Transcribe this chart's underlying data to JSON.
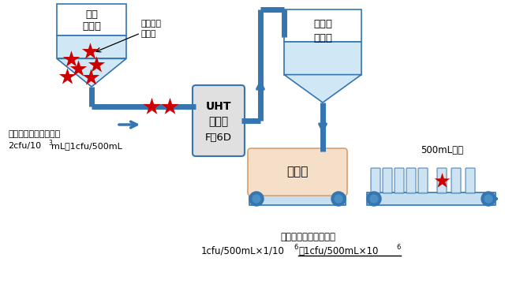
{
  "bg_color": "#ffffff",
  "blue_light": "#c5dff0",
  "blue_mid": "#4a90c4",
  "blue_dark": "#3575b0",
  "blue_arrow": "#3575b0",
  "blue_pipe": "#3575b0",
  "gray_light": "#e0e0e0",
  "peach": "#f5dfc8",
  "red_star_color": "#cc0000",
  "tank_fill": "#d0e8f5",
  "tank_fill_white": "#ffffff",
  "uht_fill": "#e0e0e0",
  "text_black": "#000000",
  "tank1_label": [
    "調合",
    "タンク"
  ],
  "tank2_label": [
    "製品液",
    "タンク"
  ],
  "uht_label": [
    "UHT",
    "殺菌機",
    "F＝6D"
  ],
  "filler_label": "充填機",
  "label_before": "殺菌前の製品液生菌数",
  "label_before2": "2cfu/10",
  "label_before2b": "3",
  "label_before2c": "mL＝1cfu/500mL",
  "label_target": "殺菌対象",
  "label_microbe": "微生物",
  "label_500": "500mL容器",
  "label_after": "殺菌後の製品液生菌数",
  "label_after2a": "1cfu/500mL×1/10",
  "label_after2b": "6",
  "label_after2c": "＝1cfu/500mL×10",
  "label_after2d": "6"
}
